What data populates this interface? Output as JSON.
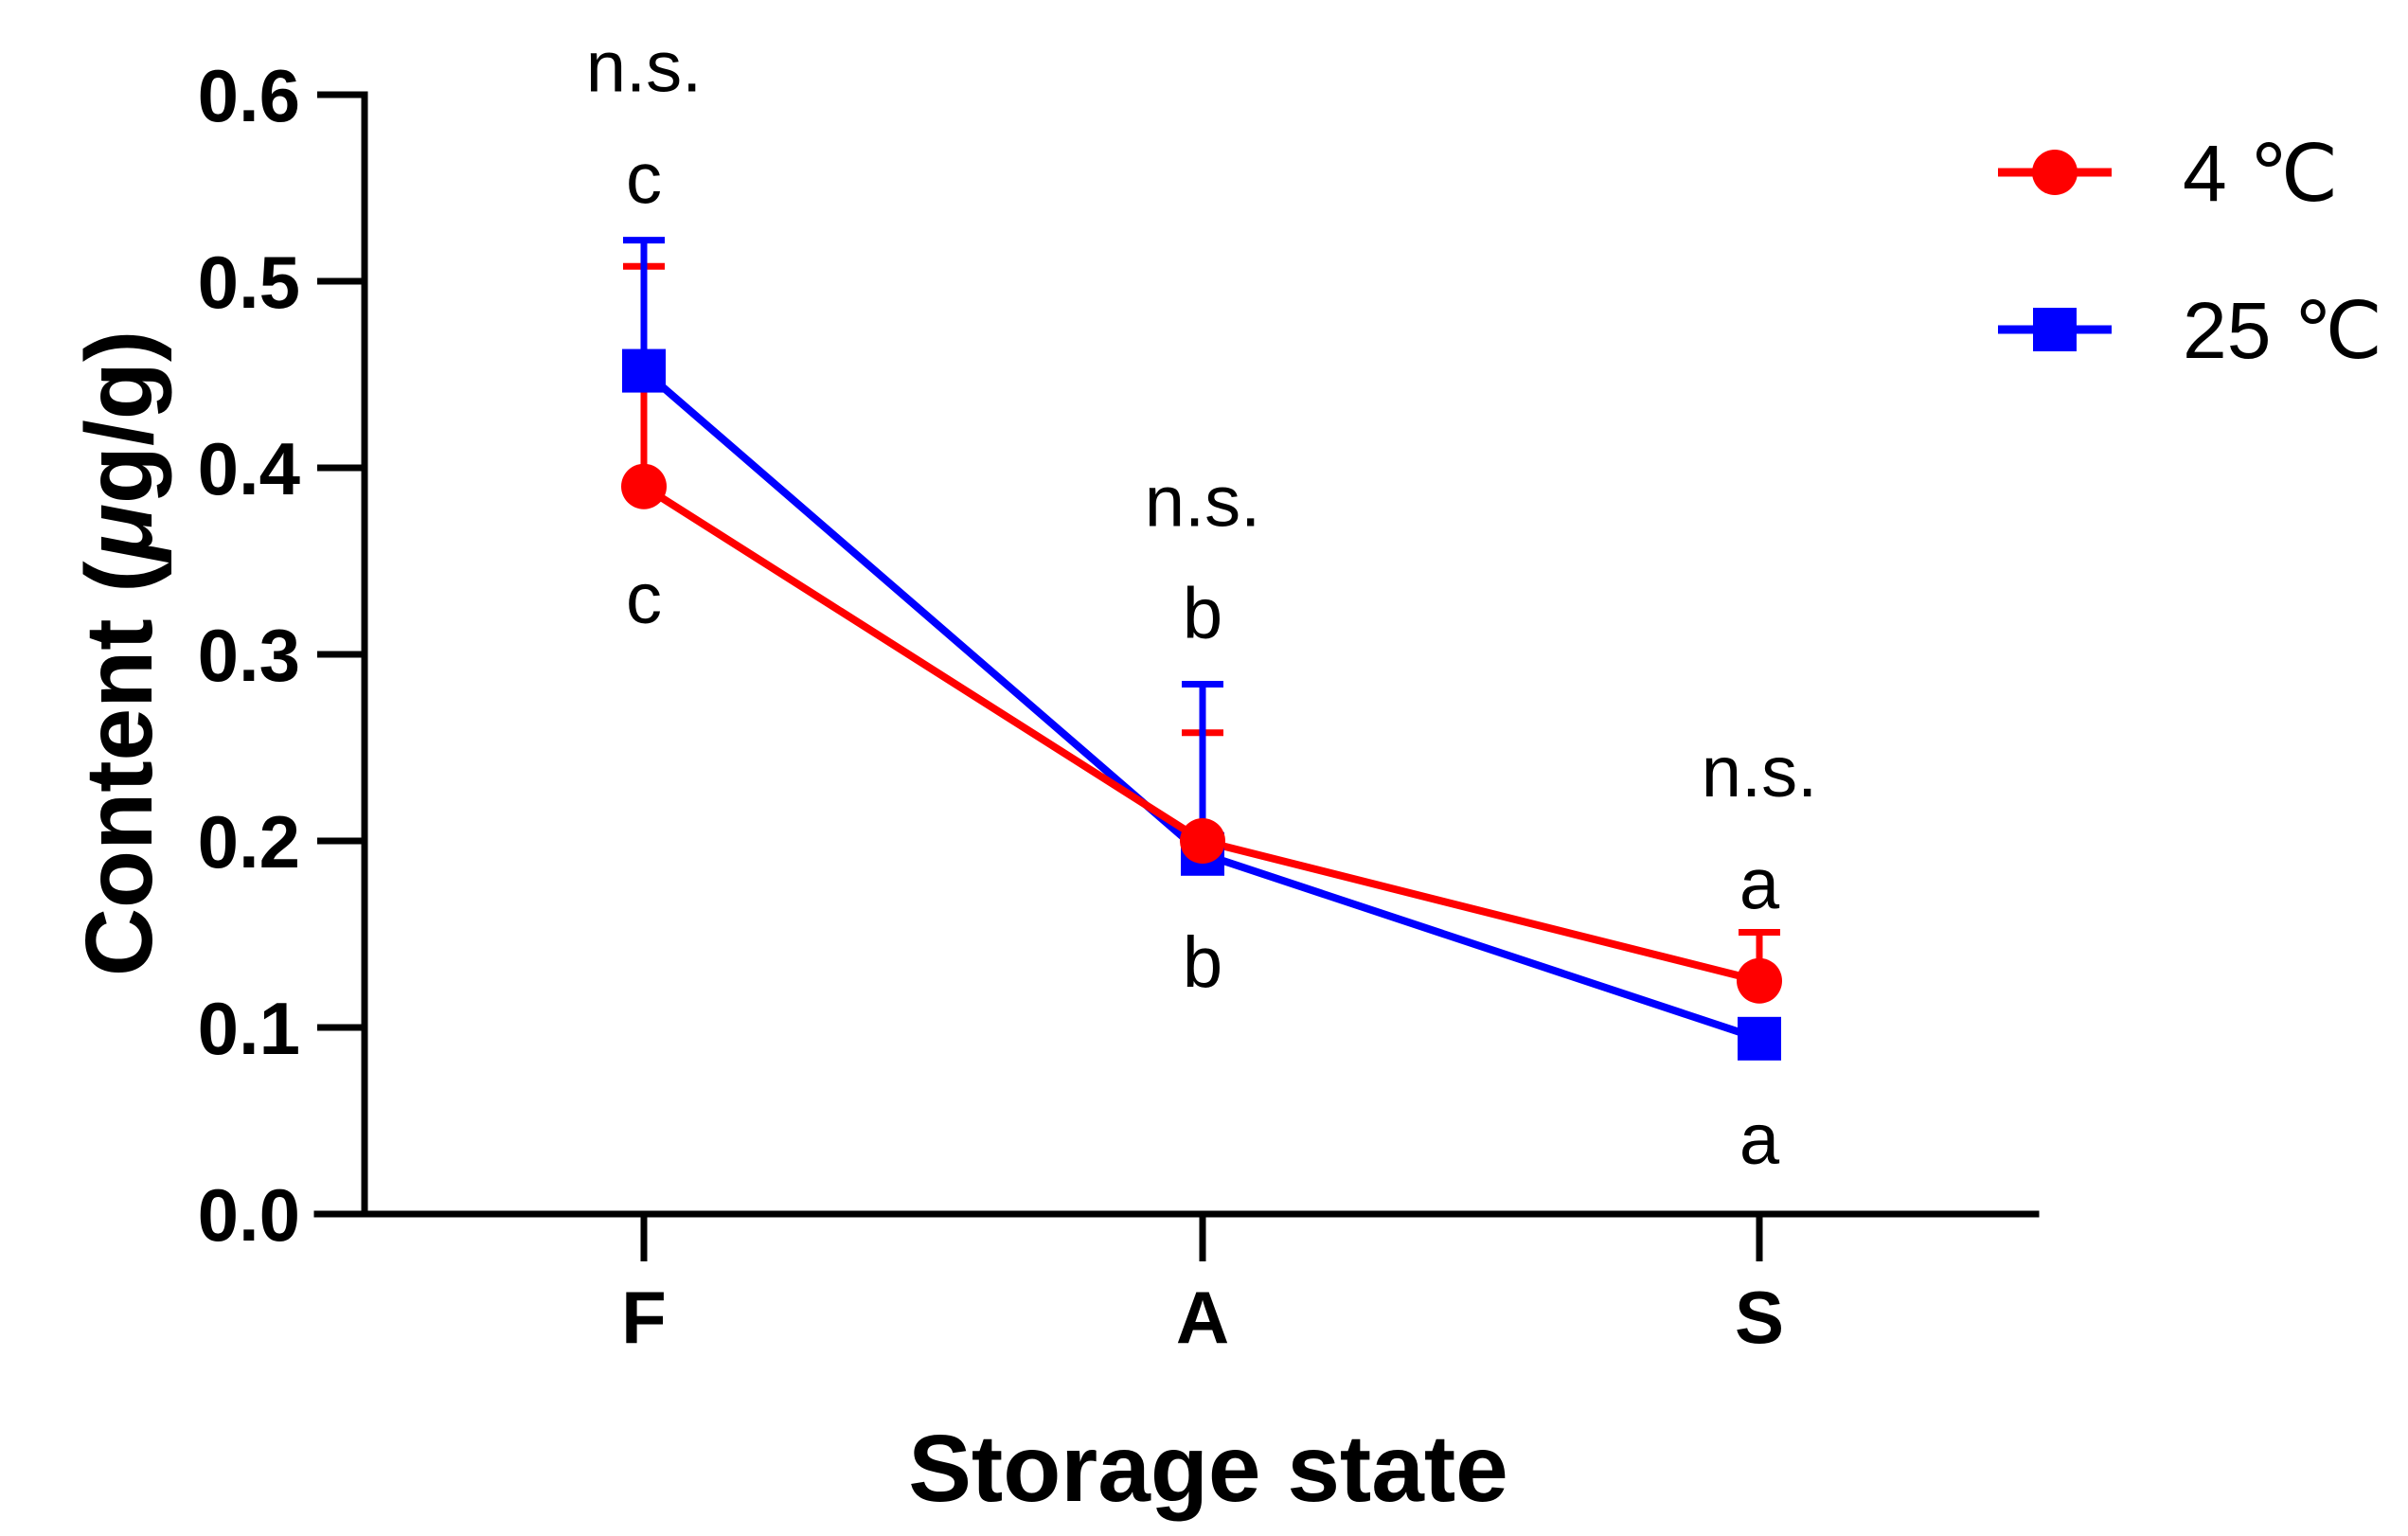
{
  "chart_data": {
    "type": "line",
    "categories": [
      "F",
      "A",
      "S"
    ],
    "xlabel": "Storage state",
    "ylabel_main": "Content (",
    "ylabel_unit_mu": "μ",
    "ylabel_unit_rest": "g/g)",
    "ylim": [
      0.0,
      0.6
    ],
    "yticks": [
      "0.0",
      "0.1",
      "0.2",
      "0.3",
      "0.4",
      "0.5",
      "0.6"
    ],
    "grid": false,
    "legend_position": "top-right",
    "series": [
      {
        "name": "4 ℃",
        "color": "#ff0000",
        "marker": "circle",
        "values": [
          0.39,
          0.2,
          0.125
        ],
        "error_upper": [
          0.508,
          0.258,
          0.151
        ]
      },
      {
        "name": "25 ℃",
        "color": "#0000ff",
        "marker": "square",
        "values": [
          0.452,
          0.193,
          0.094
        ],
        "error_upper": [
          0.522,
          0.284,
          0.094
        ]
      }
    ],
    "annotations": [
      {
        "category": "F",
        "text": "n.s.",
        "y": 0.615
      },
      {
        "category": "F",
        "text": "c",
        "y": 0.555
      },
      {
        "category": "F",
        "text": "c",
        "y": 0.33
      },
      {
        "category": "A",
        "text": "n.s.",
        "y": 0.382
      },
      {
        "category": "A",
        "text": "b",
        "y": 0.322
      },
      {
        "category": "A",
        "text": "b",
        "y": 0.135
      },
      {
        "category": "S",
        "text": "n.s.",
        "y": 0.237
      },
      {
        "category": "S",
        "text": "a",
        "y": 0.177
      },
      {
        "category": "S",
        "text": "a",
        "y": 0.04
      }
    ]
  }
}
